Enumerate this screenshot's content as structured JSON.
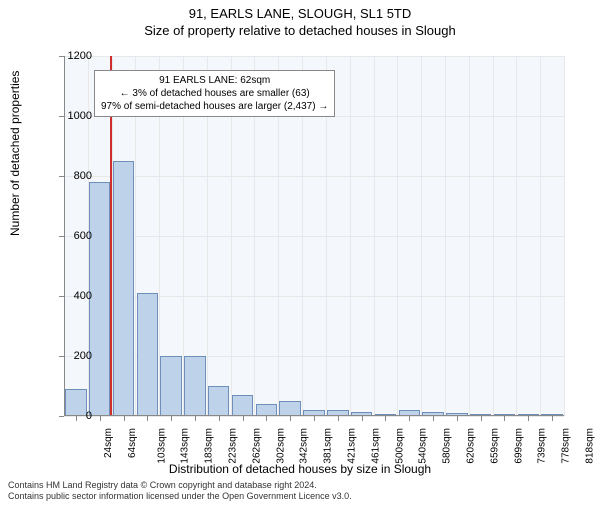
{
  "title": "91, EARLS LANE, SLOUGH, SL1 5TD",
  "subtitle": "Size of property relative to detached houses in Slough",
  "ylabel": "Number of detached properties",
  "xlabel": "Distribution of detached houses by size in Slough",
  "footer_line1": "Contains HM Land Registry data © Crown copyright and database right 2024.",
  "footer_line2": "Contains public sector information licensed under the Open Government Licence v3.0.",
  "chart": {
    "type": "bar",
    "plot_bg": "#f4f7fb",
    "grid_color": "#e8e8e8",
    "axis_color": "#888888",
    "bar_fill": "#bed2ea",
    "bar_border": "#6d8fb9",
    "marker_color": "#d02d2d",
    "ylim": [
      0,
      1200
    ],
    "ytick_step": 200,
    "yticks": [
      0,
      200,
      400,
      600,
      800,
      1000,
      1200
    ],
    "categories": [
      "24sqm",
      "64sqm",
      "103sqm",
      "143sqm",
      "183sqm",
      "223sqm",
      "262sqm",
      "302sqm",
      "342sqm",
      "381sqm",
      "421sqm",
      "461sqm",
      "500sqm",
      "540sqm",
      "580sqm",
      "620sqm",
      "659sqm",
      "699sqm",
      "739sqm",
      "778sqm",
      "818sqm"
    ],
    "values": [
      90,
      780,
      850,
      410,
      200,
      200,
      100,
      70,
      40,
      50,
      20,
      20,
      15,
      0,
      20,
      15,
      10,
      5,
      5,
      5,
      0
    ],
    "marker_category_index": 1,
    "marker_position": 0.95,
    "bar_width_ratio": 0.9
  },
  "annotation": {
    "line1": "91 EARLS LANE: 62sqm",
    "line2": "← 3% of detached houses are smaller (63)",
    "line3": "97% of semi-detached houses are larger (2,437) →"
  }
}
